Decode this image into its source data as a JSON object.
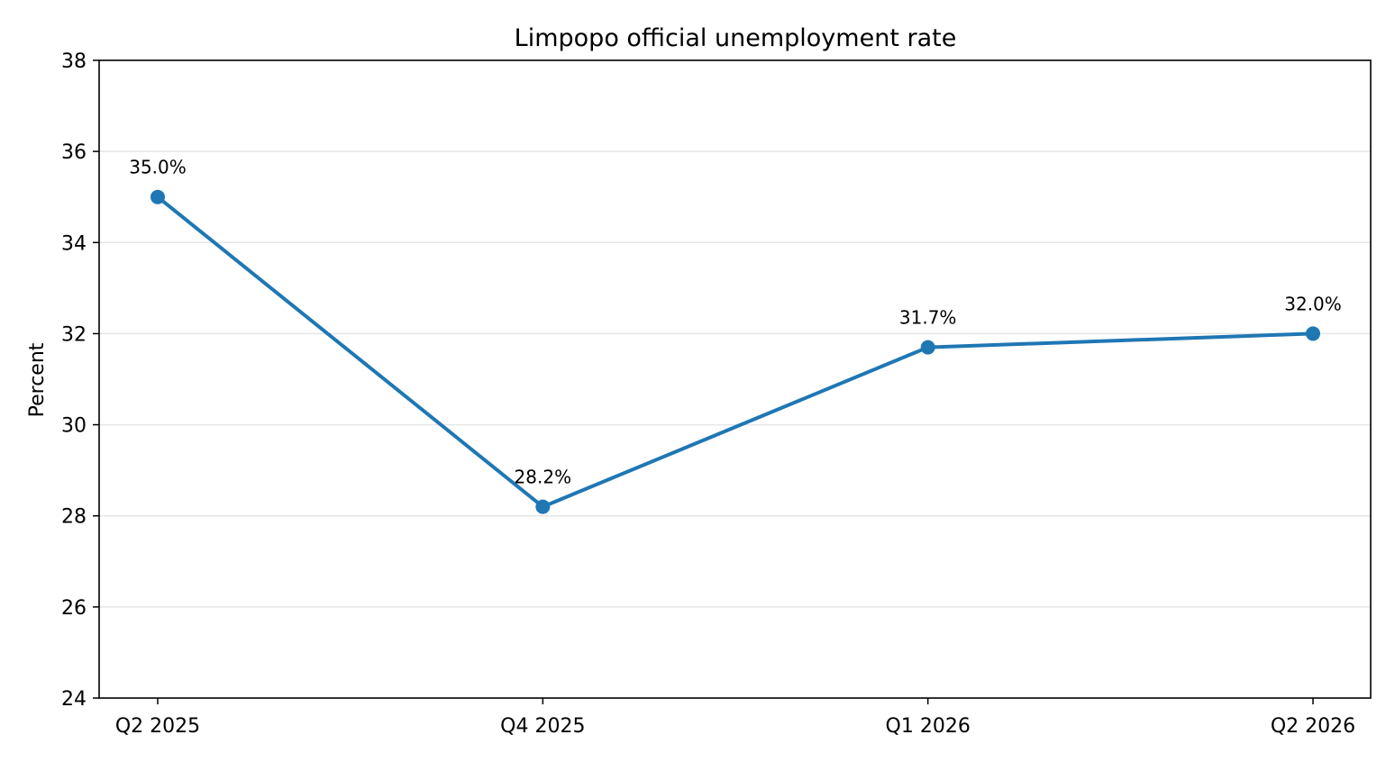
{
  "chart_data": {
    "type": "line",
    "title": "Limpopo official unemployment rate",
    "xlabel": "",
    "ylabel": "Percent",
    "categories": [
      "Q2 2025",
      "Q4 2025",
      "Q1 2026",
      "Q2 2026"
    ],
    "series": [
      {
        "values": [
          35.0,
          28.2,
          31.7,
          32.0
        ],
        "data_labels": [
          "35.0%",
          "28.2%",
          "31.7%",
          "32.0%"
        ]
      }
    ],
    "ylim": [
      24,
      38
    ],
    "yticks": [
      24,
      26,
      28,
      30,
      32,
      34,
      36,
      38
    ],
    "grid": "horizontal",
    "legend": "none",
    "colors": {
      "line": "#1f77b4",
      "grid": "#e6e6e6",
      "axis": "#000000"
    }
  }
}
